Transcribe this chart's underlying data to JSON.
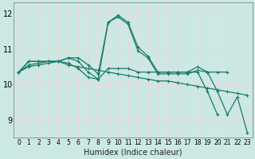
{
  "title": "",
  "xlabel": "Humidex (Indice chaleur)",
  "bg_color": "#cce8e4",
  "grid_color": "#e8d8d8",
  "line_color": "#1a7a6a",
  "xlim": [
    -0.5,
    23.5
  ],
  "ylim": [
    8.5,
    12.3
  ],
  "xticks": [
    0,
    1,
    2,
    3,
    4,
    5,
    6,
    7,
    8,
    9,
    10,
    11,
    12,
    13,
    14,
    15,
    16,
    17,
    18,
    19,
    20,
    21,
    22,
    23
  ],
  "yticks": [
    9,
    10,
    11,
    12
  ],
  "series": [
    [
      10.35,
      10.65,
      10.65,
      10.65,
      10.65,
      10.75,
      10.75,
      10.55,
      10.3,
      11.75,
      11.95,
      11.75,
      11.05,
      10.8,
      10.35,
      10.35,
      10.35,
      10.35,
      10.5,
      10.35,
      10.35,
      10.35,
      null,
      null
    ],
    [
      10.35,
      10.65,
      10.65,
      10.65,
      10.65,
      10.75,
      10.65,
      10.35,
      10.15,
      11.75,
      11.9,
      11.7,
      10.95,
      10.75,
      10.3,
      10.3,
      10.3,
      10.3,
      10.4,
      10.35,
      9.8,
      9.15,
      9.65,
      8.65
    ],
    [
      10.35,
      10.5,
      10.55,
      10.6,
      10.65,
      10.55,
      10.5,
      10.45,
      10.4,
      10.35,
      10.3,
      10.25,
      10.2,
      10.15,
      10.1,
      10.1,
      10.05,
      10.0,
      9.95,
      9.9,
      9.85,
      9.8,
      9.75,
      9.7
    ],
    [
      10.35,
      10.55,
      10.6,
      10.65,
      10.65,
      10.6,
      10.45,
      10.2,
      10.15,
      10.45,
      10.45,
      10.45,
      10.35,
      10.35,
      10.35,
      10.35,
      10.35,
      10.35,
      10.35,
      9.8,
      9.15,
      null,
      null,
      null
    ]
  ],
  "xlabel_fontsize": 7,
  "tick_fontsize": 5.5,
  "linewidth": 0.9,
  "markersize": 3.0,
  "markeredgewidth": 0.8
}
